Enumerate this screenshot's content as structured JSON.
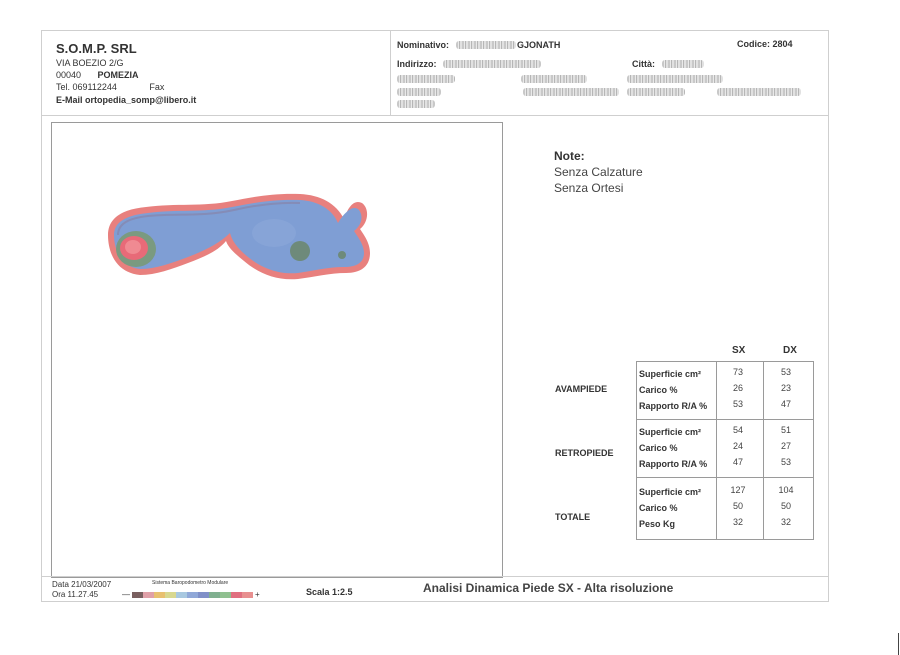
{
  "company": {
    "name": "S.O.M.P. SRL",
    "street": "VIA BOEZIO  2/G",
    "zip": "00040",
    "city": "POMEZIA",
    "tel": "Tel. 069112244",
    "fax": "Fax",
    "email": "E-Mail ortopedia_somp@libero.it"
  },
  "patient": {
    "nominativo_label": "Nominativo:",
    "nominativo_value": "GJONATH",
    "codice": "Codice: 2804",
    "indirizzo_label": "Indirizzo:",
    "citta_label": "Città:"
  },
  "notes": {
    "title": "Note:",
    "lines": [
      "Senza Calzature",
      "Senza Ortesi"
    ]
  },
  "table": {
    "col_sx": "SX",
    "col_dx": "DX",
    "groups": [
      {
        "name": "AVAMPIEDE",
        "rows": [
          {
            "label": "Superficie  cm²",
            "sx": "73",
            "dx": "53"
          },
          {
            "label": "Carico      %",
            "sx": "26",
            "dx": "23"
          },
          {
            "label": "Rapporto R/A %",
            "sx": "53",
            "dx": "47"
          }
        ]
      },
      {
        "name": "RETROPIEDE",
        "rows": [
          {
            "label": "Superficie  cm²",
            "sx": "54",
            "dx": "51"
          },
          {
            "label": "Carico      %",
            "sx": "24",
            "dx": "27"
          },
          {
            "label": "Rapporto R/A %",
            "sx": "47",
            "dx": "53"
          }
        ]
      },
      {
        "name": "TOTALE",
        "rows": [
          {
            "label": "Superficie  cm²",
            "sx": "127",
            "dx": "104"
          },
          {
            "label": "Carico      %",
            "sx": "50",
            "dx": "50"
          },
          {
            "label": "Peso      Kg",
            "sx": "32",
            "dx": "32"
          }
        ]
      }
    ]
  },
  "footer": {
    "data": "Data 21/03/2007",
    "ora": "Ora 11.27.45",
    "sistema": "Sistema Baropodometro Modulare",
    "minus": "—",
    "plus": "+",
    "scala": "Scala 1:2.5",
    "analisi": "Analisi Dinamica Piede SX - Alta risoluzione"
  },
  "colors": {
    "outline": "#e8807e",
    "pressure_low": "#7f9ed4",
    "pressure_mid": "#7a9a80",
    "pressure_high": "#e86a78",
    "scale": [
      "#7a6060",
      "#e0a0a8",
      "#e8c070",
      "#d8d890",
      "#a8c8e0",
      "#90a8d8",
      "#8090c8",
      "#80b090",
      "#90c090",
      "#e07080",
      "#e89090"
    ]
  }
}
